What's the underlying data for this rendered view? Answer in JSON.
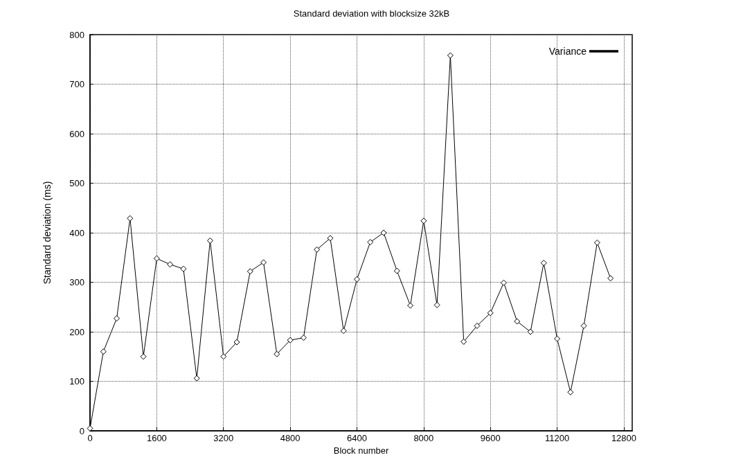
{
  "chart_data": {
    "type": "line",
    "title": "Standard deviation with blocksize 32kB",
    "xlabel": "Block number",
    "ylabel": "Standard deviation (ms)",
    "x": [
      0,
      320,
      640,
      960,
      1280,
      1600,
      1920,
      2240,
      2560,
      2880,
      3200,
      3520,
      3840,
      4160,
      4480,
      4800,
      5120,
      5440,
      5760,
      6080,
      6400,
      6720,
      7040,
      7360,
      7680,
      8000,
      8320,
      8640,
      8960,
      9280,
      9600,
      9920,
      10240,
      10560,
      10880,
      11200,
      11520,
      11840,
      12160,
      12480
    ],
    "series": [
      {
        "name": "Variance",
        "color": "#000000",
        "values": [
          5,
          160,
          227,
          429,
          150,
          348,
          336,
          327,
          106,
          384,
          150,
          179,
          322,
          340,
          155,
          183,
          188,
          366,
          389,
          202,
          306,
          381,
          400,
          323,
          253,
          424,
          254,
          758,
          180,
          212,
          238,
          299,
          221,
          200,
          339,
          186,
          78,
          212,
          380,
          308
        ]
      }
    ],
    "xlim": [
      0,
      13000
    ],
    "xticks": [
      0,
      1600,
      3200,
      4800,
      6400,
      8000,
      9600,
      11200,
      12800
    ],
    "ylim": [
      0,
      800
    ],
    "yticks": [
      0,
      100,
      200,
      300,
      400,
      500,
      600,
      700,
      800
    ],
    "grid": true,
    "legend": "top right",
    "marker": "diamond",
    "line_style": "solid"
  }
}
